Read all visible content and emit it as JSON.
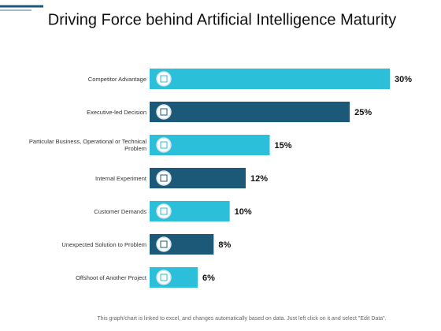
{
  "chart_data": {
    "type": "bar",
    "orientation": "horizontal",
    "title": "Driving Force behind Artificial Intelligence Maturity",
    "categories": [
      "Competitor Advantage",
      "Executive-led Decision",
      "Particular Business, Operational or Technical Problem",
      "Internal Experiment",
      "Customer Demands",
      "Unexpected Solution to Problem",
      "Offshoot of Another Project"
    ],
    "values": [
      30,
      25,
      15,
      12,
      10,
      8,
      6
    ],
    "value_labels": [
      "30%",
      "25%",
      "15%",
      "12%",
      "10%",
      "8%",
      "6%"
    ],
    "colors": [
      "#2bbfd9",
      "#1c5878",
      "#2bbfd9",
      "#1c5878",
      "#2bbfd9",
      "#1c5878",
      "#2bbfd9"
    ],
    "footnote": "This graph/chart is linked to excel, and changes automatically based on data. Just left click on it and select \"Edit Data\"."
  }
}
